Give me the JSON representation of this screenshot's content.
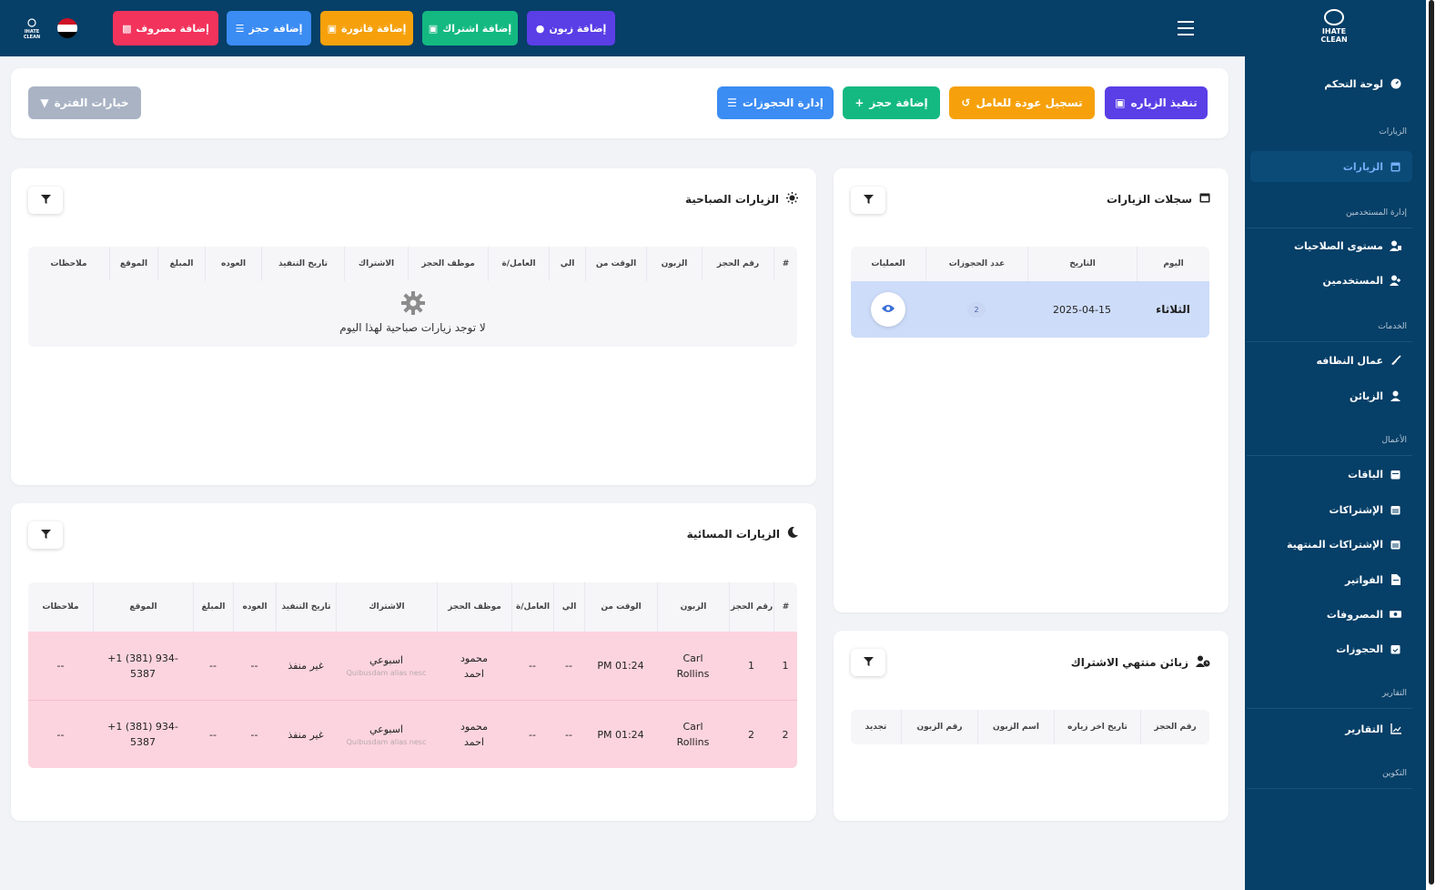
{
  "topbar": {
    "buttons": {
      "add_customer": "إضافة زبون",
      "add_subscription": "إضافة اشتراك",
      "add_invoice": "إضافة فاتورة",
      "add_booking": "إضافة حجز",
      "add_expense": "إضافة مصروف"
    },
    "logo_text": "IHATE CLEAN"
  },
  "sidebar": {
    "logo_text": "IHATE CLEAN",
    "dashboard": "لوحة التحكم",
    "section_visits": "الزيارات",
    "visits": "الزيارات",
    "section_users": "إدارة المستخدمين",
    "permissions": "مستوى الصلاحيات",
    "users": "المستخدمين",
    "section_services": "الخدمات",
    "cleaners": "عمال النظافه",
    "customers": "الزبائن",
    "section_business": "الأعمال",
    "packages": "الباقات",
    "subscriptions": "الإشتراكات",
    "ended_subscriptions": "الإشتراكات المنتهية",
    "invoices": "الفواتير",
    "expenses": "المصروفات",
    "bookings": "الحجوزات",
    "section_reports": "التقارير",
    "reports": "التقارير",
    "section_config": "التكوين"
  },
  "actions": {
    "execute_visit": "تنفيذ الزياره",
    "register_return": "تسجيل عودة للعامل",
    "add_booking": "إضافة حجز",
    "manage_bookings": "إدارة الحجوزات",
    "period_options": "خيارات الفترة"
  },
  "visit_logs": {
    "title": "سجلات الزيارات",
    "headers": [
      "اليوم",
      "التاريخ",
      "عدد الحجوزات",
      "العمليات"
    ],
    "rows": [
      {
        "day": "الثلاثاء",
        "date": "2025-04-15",
        "count": "2"
      }
    ]
  },
  "morning": {
    "title": "الزيارات الصباحية",
    "headers": [
      "#",
      "رقم الحجز",
      "الزبون",
      "الوقت من",
      "الي",
      "العامل/ة",
      "موظف الحجز",
      "الاشتراك",
      "تاريخ التنفيذ",
      "العوده",
      "المبلغ",
      "الموقع",
      "ملاحظات"
    ],
    "empty": "لا توجد زيارات صباحية لهذا اليوم"
  },
  "evening": {
    "title": "الزيارات المسائية",
    "headers": [
      "#",
      "رقم الحجز",
      "الزبون",
      "الوقت من",
      "الي",
      "العامل/ة",
      "موظف الحجز",
      "الاشتراك",
      "تاريخ التنفيذ",
      "العوده",
      "المبلغ",
      "الموقع",
      "ملاحظات"
    ],
    "rows": [
      {
        "idx": "1",
        "booking": "1",
        "customer": "Carl Rollins",
        "from": "01:24 PM",
        "to": "--",
        "worker": "--",
        "employee": "محمود احمد",
        "sub": "اسبوعي",
        "sub_note": "Quibusdam alias nesc",
        "exec": "غير منفذ",
        "ret": "--",
        "amount": "--",
        "location": "+1 (381) 934-5387",
        "notes": "--"
      },
      {
        "idx": "2",
        "booking": "2",
        "customer": "Carl Rollins",
        "from": "01:24 PM",
        "to": "--",
        "worker": "--",
        "employee": "محمود احمد",
        "sub": "اسبوعي",
        "sub_note": "Quibusdam alias nesc",
        "exec": "غير منفذ",
        "ret": "--",
        "amount": "--",
        "location": "+1 (381) 934-5387",
        "notes": "--"
      }
    ]
  },
  "expired": {
    "title": "زبائن منتهي الاشتراك",
    "headers": [
      "رقم الحجز",
      "تاريخ اخر زياره",
      "اسم الزبون",
      "رقم الزبون",
      "تجديد"
    ]
  },
  "colors": {
    "navy": "#063f67",
    "purple": "#5a3ee6",
    "green": "#13b981",
    "orange": "#f6a10c",
    "blue": "#3b8cf3",
    "pink": "#f2335c",
    "gray": "#a9b3c4",
    "row_pink": "#fcd4df",
    "row_blue": "#cddcf9"
  },
  "icons": [
    "dashboard-icon",
    "calendar-icon",
    "user-shield-icon",
    "user-plus-icon",
    "broom-icon",
    "user-icon",
    "box-icon",
    "file-icon",
    "money-icon",
    "chart-icon",
    "sun-icon",
    "moon-icon",
    "filter-icon",
    "eye-icon"
  ]
}
